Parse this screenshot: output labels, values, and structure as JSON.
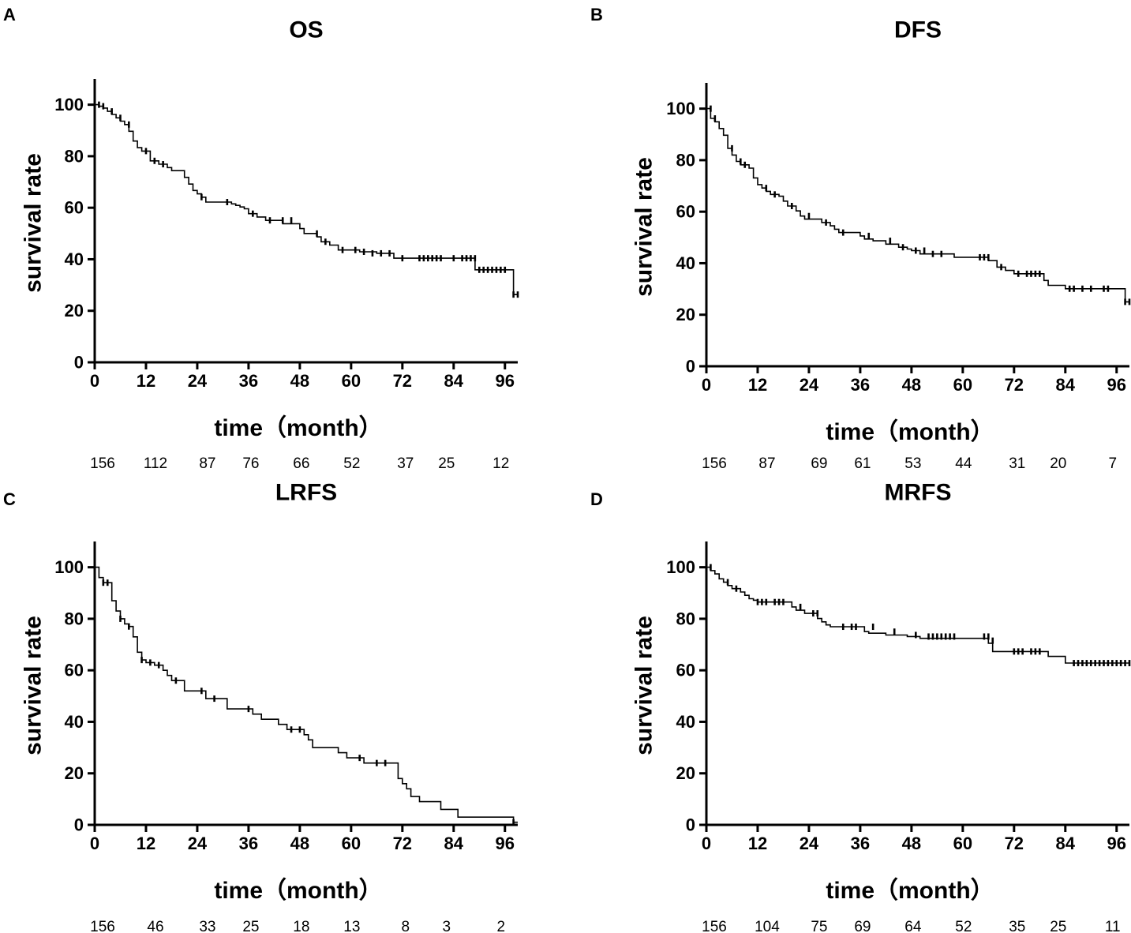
{
  "chart_data": [
    {
      "type": "line",
      "panel": "A",
      "title": "OS",
      "xlabel": "time（month）",
      "ylabel": "survival rate",
      "xlim": [
        0,
        99
      ],
      "ylim": [
        0,
        110
      ],
      "xticks": [
        "0",
        "12",
        "24",
        "36",
        "48",
        "60",
        "72",
        "84",
        "96"
      ],
      "yticks": [
        "0",
        "20",
        "40",
        "60",
        "80",
        "100"
      ],
      "at_risk": [
        "156",
        "112",
        "87",
        "76",
        "66",
        "52",
        "37",
        "25",
        "12"
      ],
      "steps": [
        [
          0,
          100
        ],
        [
          1,
          99.4
        ],
        [
          2,
          98.7
        ],
        [
          3,
          97.4
        ],
        [
          4,
          96.2
        ],
        [
          5,
          94.9
        ],
        [
          6,
          93.6
        ],
        [
          7,
          92.3
        ],
        [
          8,
          89.7
        ],
        [
          9,
          85.9
        ],
        [
          10,
          83.3
        ],
        [
          11,
          82.0
        ],
        [
          13,
          78.2
        ],
        [
          15,
          76.9
        ],
        [
          17,
          75.6
        ],
        [
          18,
          74.4
        ],
        [
          20,
          74.4
        ],
        [
          21,
          71.8
        ],
        [
          22,
          69.2
        ],
        [
          23,
          66.7
        ],
        [
          24,
          65.4
        ],
        [
          25,
          64.1
        ],
        [
          26,
          62.2
        ],
        [
          32,
          61.5
        ],
        [
          33,
          60.9
        ],
        [
          34,
          60.3
        ],
        [
          35,
          59.6
        ],
        [
          36,
          57.7
        ],
        [
          38,
          56.4
        ],
        [
          40,
          55.1
        ],
        [
          44,
          53.8
        ],
        [
          48,
          51.9
        ],
        [
          49,
          50.0
        ],
        [
          52,
          48.7
        ],
        [
          53,
          46.8
        ],
        [
          55,
          45.5
        ],
        [
          57,
          43.6
        ],
        [
          62,
          42.9
        ],
        [
          66,
          42.3
        ],
        [
          70,
          40.4
        ],
        [
          89,
          40.4
        ],
        [
          89,
          35.9
        ],
        [
          98,
          35.9
        ],
        [
          98,
          26.3
        ],
        [
          99,
          26.3
        ]
      ],
      "censored": [
        [
          1,
          100
        ],
        [
          2,
          99.4
        ],
        [
          4,
          97.4
        ],
        [
          6,
          94.9
        ],
        [
          8,
          92.3
        ],
        [
          12,
          82.0
        ],
        [
          14,
          78.2
        ],
        [
          16,
          76.9
        ],
        [
          25,
          64.1
        ],
        [
          31,
          62.2
        ],
        [
          37,
          57.7
        ],
        [
          41,
          55.1
        ],
        [
          44,
          55.1
        ],
        [
          46,
          55.1
        ],
        [
          52,
          50.0
        ],
        [
          54,
          46.8
        ],
        [
          58,
          43.6
        ],
        [
          61,
          43.6
        ],
        [
          63,
          42.9
        ],
        [
          65,
          42.3
        ],
        [
          67,
          42.3
        ],
        [
          69,
          42.3
        ],
        [
          72,
          40.4
        ],
        [
          76,
          40.4
        ],
        [
          77,
          40.4
        ],
        [
          78,
          40.4
        ],
        [
          79,
          40.4
        ],
        [
          80,
          40.4
        ],
        [
          81,
          40.4
        ],
        [
          84,
          40.4
        ],
        [
          86,
          40.4
        ],
        [
          87,
          40.4
        ],
        [
          88,
          40.4
        ],
        [
          89,
          40.4
        ],
        [
          90,
          35.9
        ],
        [
          91,
          35.9
        ],
        [
          92,
          35.9
        ],
        [
          93,
          35.9
        ],
        [
          94,
          35.9
        ],
        [
          95,
          35.9
        ],
        [
          96,
          35.9
        ],
        [
          98,
          26.3
        ],
        [
          99,
          26.3
        ]
      ]
    },
    {
      "type": "line",
      "panel": "B",
      "title": "DFS",
      "xlabel": "time（month）",
      "ylabel": "survival rate",
      "xlim": [
        0,
        99
      ],
      "ylim": [
        0,
        110
      ],
      "xticks": [
        "0",
        "12",
        "24",
        "36",
        "48",
        "60",
        "72",
        "84",
        "96"
      ],
      "yticks": [
        "0",
        "20",
        "40",
        "60",
        "80",
        "100"
      ],
      "at_risk": [
        "156",
        "87",
        "69",
        "61",
        "53",
        "44",
        "31",
        "20",
        "7"
      ],
      "steps": [
        [
          0,
          100
        ],
        [
          1,
          96.2
        ],
        [
          2,
          94.9
        ],
        [
          3,
          92.3
        ],
        [
          4,
          89.7
        ],
        [
          5,
          84.6
        ],
        [
          6,
          82.0
        ],
        [
          7,
          79.5
        ],
        [
          8,
          78.2
        ],
        [
          10,
          76.9
        ],
        [
          11,
          73.1
        ],
        [
          12,
          70.5
        ],
        [
          13,
          69.2
        ],
        [
          14,
          67.9
        ],
        [
          15,
          66.7
        ],
        [
          17,
          66.0
        ],
        [
          18,
          64.1
        ],
        [
          19,
          62.2
        ],
        [
          21,
          60.3
        ],
        [
          22,
          58.3
        ],
        [
          23,
          57.1
        ],
        [
          27,
          55.8
        ],
        [
          29,
          54.5
        ],
        [
          30,
          53.2
        ],
        [
          31,
          51.9
        ],
        [
          36,
          50.6
        ],
        [
          37,
          49.4
        ],
        [
          39,
          48.7
        ],
        [
          42,
          47.4
        ],
        [
          45,
          46.2
        ],
        [
          47,
          45.5
        ],
        [
          48,
          44.9
        ],
        [
          50,
          43.6
        ],
        [
          58,
          42.3
        ],
        [
          66,
          41.0
        ],
        [
          68,
          38.5
        ],
        [
          70,
          37.2
        ],
        [
          72,
          35.9
        ],
        [
          79,
          33.3
        ],
        [
          80,
          31.4
        ],
        [
          84,
          30.1
        ],
        [
          97,
          30.1
        ],
        [
          98,
          25.0
        ],
        [
          99,
          25.0
        ]
      ],
      "censored": [
        [
          1,
          100
        ],
        [
          2,
          96.2
        ],
        [
          6,
          84.6
        ],
        [
          8,
          79.5
        ],
        [
          9,
          78.2
        ],
        [
          14,
          69.2
        ],
        [
          16,
          66.7
        ],
        [
          20,
          62.2
        ],
        [
          24,
          58.3
        ],
        [
          28,
          55.8
        ],
        [
          32,
          51.9
        ],
        [
          38,
          50.6
        ],
        [
          43,
          48.7
        ],
        [
          46,
          46.2
        ],
        [
          49,
          44.9
        ],
        [
          51,
          44.9
        ],
        [
          53,
          43.6
        ],
        [
          55,
          43.6
        ],
        [
          64,
          42.3
        ],
        [
          65,
          42.3
        ],
        [
          66,
          42.3
        ],
        [
          69,
          38.5
        ],
        [
          73,
          35.9
        ],
        [
          75,
          35.9
        ],
        [
          76,
          35.9
        ],
        [
          77,
          35.9
        ],
        [
          78,
          35.9
        ],
        [
          85,
          30.1
        ],
        [
          86,
          30.1
        ],
        [
          88,
          30.1
        ],
        [
          90,
          30.1
        ],
        [
          93,
          30.1
        ],
        [
          94,
          30.1
        ],
        [
          98,
          25.0
        ],
        [
          99,
          25.0
        ]
      ]
    },
    {
      "type": "line",
      "panel": "C",
      "title": "LRFS",
      "xlabel": "time（month）",
      "ylabel": "survival rate",
      "xlim": [
        0,
        99
      ],
      "ylim": [
        0,
        110
      ],
      "xticks": [
        "0",
        "12",
        "24",
        "36",
        "48",
        "60",
        "72",
        "84",
        "96"
      ],
      "yticks": [
        "0",
        "20",
        "40",
        "60",
        "80",
        "100"
      ],
      "at_risk": [
        "156",
        "46",
        "33",
        "25",
        "18",
        "13",
        "8",
        "3",
        "2"
      ],
      "steps": [
        [
          0,
          100
        ],
        [
          1,
          96
        ],
        [
          2,
          94
        ],
        [
          4,
          87
        ],
        [
          5,
          83
        ],
        [
          6,
          80
        ],
        [
          7,
          78
        ],
        [
          8,
          77
        ],
        [
          9,
          73
        ],
        [
          10,
          67
        ],
        [
          11,
          64
        ],
        [
          12,
          63
        ],
        [
          14,
          62
        ],
        [
          16,
          60
        ],
        [
          17,
          58
        ],
        [
          18,
          56
        ],
        [
          21,
          52
        ],
        [
          26,
          49
        ],
        [
          31,
          45
        ],
        [
          37,
          43
        ],
        [
          39,
          41
        ],
        [
          43,
          39
        ],
        [
          45,
          37
        ],
        [
          49,
          35
        ],
        [
          50,
          33
        ],
        [
          51,
          30
        ],
        [
          57,
          28
        ],
        [
          59,
          26
        ],
        [
          63,
          24
        ],
        [
          71,
          24
        ],
        [
          71,
          18
        ],
        [
          72,
          16
        ],
        [
          73,
          14
        ],
        [
          74,
          11
        ],
        [
          76,
          9
        ],
        [
          81,
          6
        ],
        [
          85,
          3
        ],
        [
          98,
          3
        ],
        [
          98,
          1
        ],
        [
          99,
          1
        ]
      ],
      "censored": [
        [
          2,
          94
        ],
        [
          3,
          94
        ],
        [
          6,
          80
        ],
        [
          8,
          77
        ],
        [
          11,
          64
        ],
        [
          13,
          63
        ],
        [
          15,
          62
        ],
        [
          19,
          56
        ],
        [
          25,
          52
        ],
        [
          28,
          49
        ],
        [
          36,
          45
        ],
        [
          46,
          37
        ],
        [
          48,
          37
        ],
        [
          62,
          26
        ],
        [
          66,
          24
        ],
        [
          68,
          24
        ],
        [
          98,
          1
        ]
      ]
    },
    {
      "type": "line",
      "panel": "D",
      "title": "MRFS",
      "xlabel": "time（month）",
      "ylabel": "survival rate",
      "xlim": [
        0,
        99
      ],
      "ylim": [
        0,
        110
      ],
      "xticks": [
        "0",
        "12",
        "24",
        "36",
        "48",
        "60",
        "72",
        "84",
        "96"
      ],
      "yticks": [
        "0",
        "20",
        "40",
        "60",
        "80",
        "100"
      ],
      "at_risk": [
        "156",
        "104",
        "75",
        "69",
        "64",
        "52",
        "35",
        "25",
        "11"
      ],
      "steps": [
        [
          0,
          100
        ],
        [
          1,
          98.7
        ],
        [
          2,
          97.4
        ],
        [
          3,
          95.5
        ],
        [
          4,
          94.2
        ],
        [
          5,
          92.9
        ],
        [
          6,
          91.7
        ],
        [
          8,
          90.4
        ],
        [
          9,
          89.1
        ],
        [
          10,
          87.8
        ],
        [
          11,
          87.2
        ],
        [
          12,
          86.5
        ],
        [
          20,
          84.6
        ],
        [
          21,
          83.3
        ],
        [
          23,
          82.1
        ],
        [
          26,
          80.1
        ],
        [
          27,
          78.8
        ],
        [
          28,
          77.6
        ],
        [
          29,
          76.9
        ],
        [
          37,
          75.0
        ],
        [
          38,
          74.4
        ],
        [
          42,
          73.7
        ],
        [
          47,
          73.1
        ],
        [
          50,
          72.4
        ],
        [
          66,
          70.5
        ],
        [
          67,
          67.3
        ],
        [
          80,
          65.4
        ],
        [
          84,
          62.8
        ],
        [
          99,
          62.8
        ]
      ],
      "censored": [
        [
          1,
          100
        ],
        [
          5,
          94.2
        ],
        [
          7,
          91.7
        ],
        [
          12,
          86.5
        ],
        [
          13,
          86.5
        ],
        [
          14,
          86.5
        ],
        [
          16,
          86.5
        ],
        [
          17,
          86.5
        ],
        [
          18,
          86.5
        ],
        [
          22,
          84.6
        ],
        [
          25,
          82.1
        ],
        [
          26,
          82.1
        ],
        [
          32,
          76.9
        ],
        [
          34,
          76.9
        ],
        [
          35,
          76.9
        ],
        [
          39,
          76.9
        ],
        [
          44,
          75.0
        ],
        [
          49,
          73.7
        ],
        [
          52,
          73.1
        ],
        [
          53,
          73.1
        ],
        [
          54,
          73.1
        ],
        [
          55,
          73.1
        ],
        [
          56,
          73.1
        ],
        [
          57,
          73.1
        ],
        [
          58,
          73.1
        ],
        [
          65,
          73.1
        ],
        [
          66,
          73.1
        ],
        [
          67,
          71.5
        ],
        [
          72,
          67.3
        ],
        [
          73,
          67.3
        ],
        [
          74,
          67.3
        ],
        [
          76,
          67.3
        ],
        [
          77,
          67.3
        ],
        [
          78,
          67.3
        ],
        [
          86,
          62.8
        ],
        [
          87,
          62.8
        ],
        [
          88,
          62.8
        ],
        [
          89,
          62.8
        ],
        [
          90,
          62.8
        ],
        [
          91,
          62.8
        ],
        [
          92,
          62.8
        ],
        [
          93,
          62.8
        ],
        [
          94,
          62.8
        ],
        [
          95,
          62.8
        ],
        [
          96,
          62.8
        ],
        [
          97,
          62.8
        ],
        [
          98,
          62.8
        ],
        [
          99,
          62.8
        ]
      ]
    }
  ]
}
